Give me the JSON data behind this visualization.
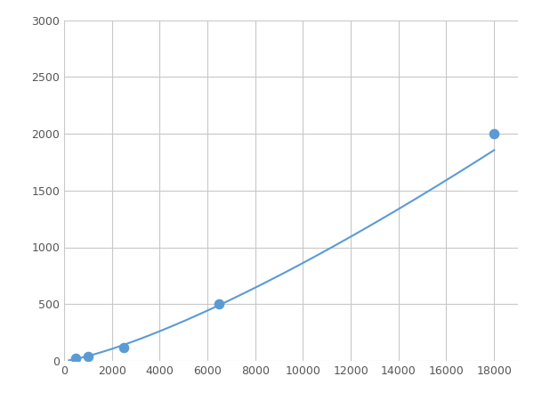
{
  "x_points": [
    500,
    1000,
    2500,
    6500,
    18000
  ],
  "y_points": [
    20,
    40,
    120,
    500,
    2000
  ],
  "line_color": "#5b9bd5",
  "marker_color": "#5b9bd5",
  "marker_size": 6,
  "xlim": [
    0,
    19000
  ],
  "ylim": [
    0,
    3000
  ],
  "xticks": [
    0,
    2000,
    4000,
    6000,
    8000,
    10000,
    12000,
    14000,
    16000,
    18000
  ],
  "yticks": [
    0,
    500,
    1000,
    1500,
    2000,
    2500,
    3000
  ],
  "grid_color": "#c8c8c8",
  "background_color": "#ffffff",
  "linewidth": 1.5,
  "tick_labelsize": 9,
  "tick_color": "#555555"
}
